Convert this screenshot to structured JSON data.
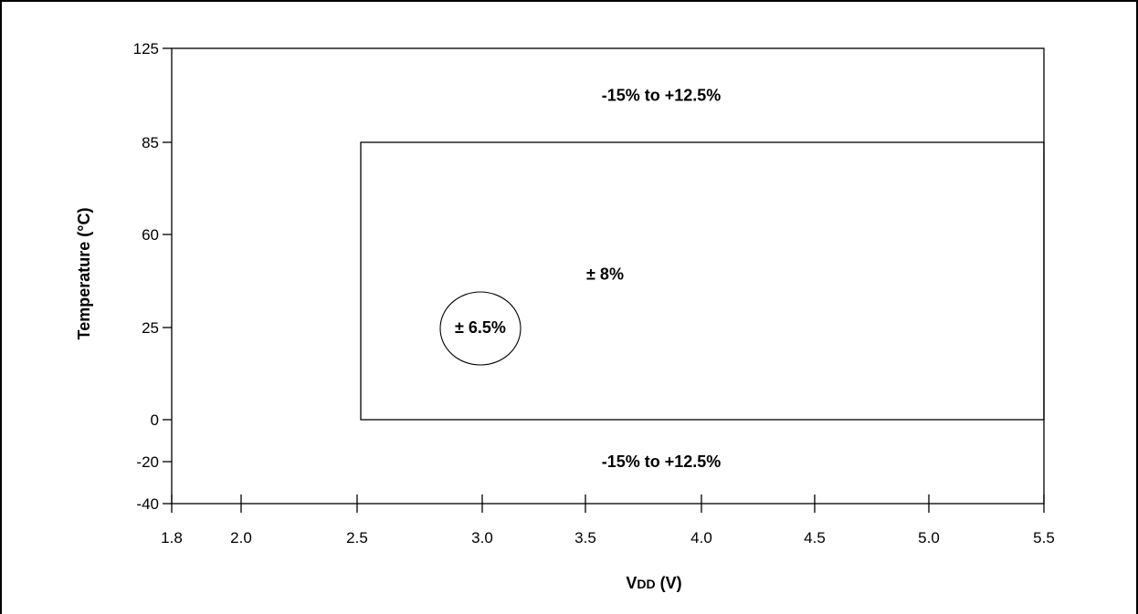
{
  "chart_data": {
    "type": "region-map",
    "xlabel": "VDD (V)",
    "xlabel_main": "V",
    "xlabel_sub": "DD",
    "xlabel_unit": " (V)",
    "ylabel": "Temperature (°C)",
    "x_ticks": [
      1.8,
      2.0,
      2.5,
      3.0,
      3.5,
      4.0,
      4.5,
      5.0,
      5.5
    ],
    "x_tick_labels": [
      "1.8",
      "2.0",
      "2.5",
      "3.0",
      "3.5",
      "4.0",
      "4.5",
      "5.0",
      "5.5"
    ],
    "y_ticks": [
      -40,
      -20,
      0,
      25,
      60,
      85,
      125
    ],
    "y_tick_labels": [
      "-40",
      "-20",
      "0",
      "25",
      "60",
      "85",
      "125"
    ],
    "xlim": [
      1.8,
      5.5
    ],
    "ylim": [
      -40,
      125
    ],
    "regions": [
      {
        "name": "outer",
        "label": "-15% to +12.5%",
        "x": [
          1.8,
          5.5
        ],
        "y": [
          -40,
          125
        ],
        "label_at": [
          3.5,
          105
        ]
      },
      {
        "name": "outer-lower",
        "label": "-15% to +12.5%",
        "x": [
          1.8,
          5.5
        ],
        "y": [
          -40,
          0
        ],
        "label_at": [
          3.5,
          -20
        ]
      },
      {
        "name": "inner",
        "label": "± 8%",
        "x": [
          2.5,
          5.5
        ],
        "y": [
          0,
          85
        ],
        "label_at": [
          3.75,
          45
        ]
      },
      {
        "name": "point",
        "label": "± 6.5%",
        "x": [
          3.0,
          3.0
        ],
        "y": [
          25,
          25
        ],
        "label_at": [
          3.0,
          25
        ]
      }
    ]
  }
}
